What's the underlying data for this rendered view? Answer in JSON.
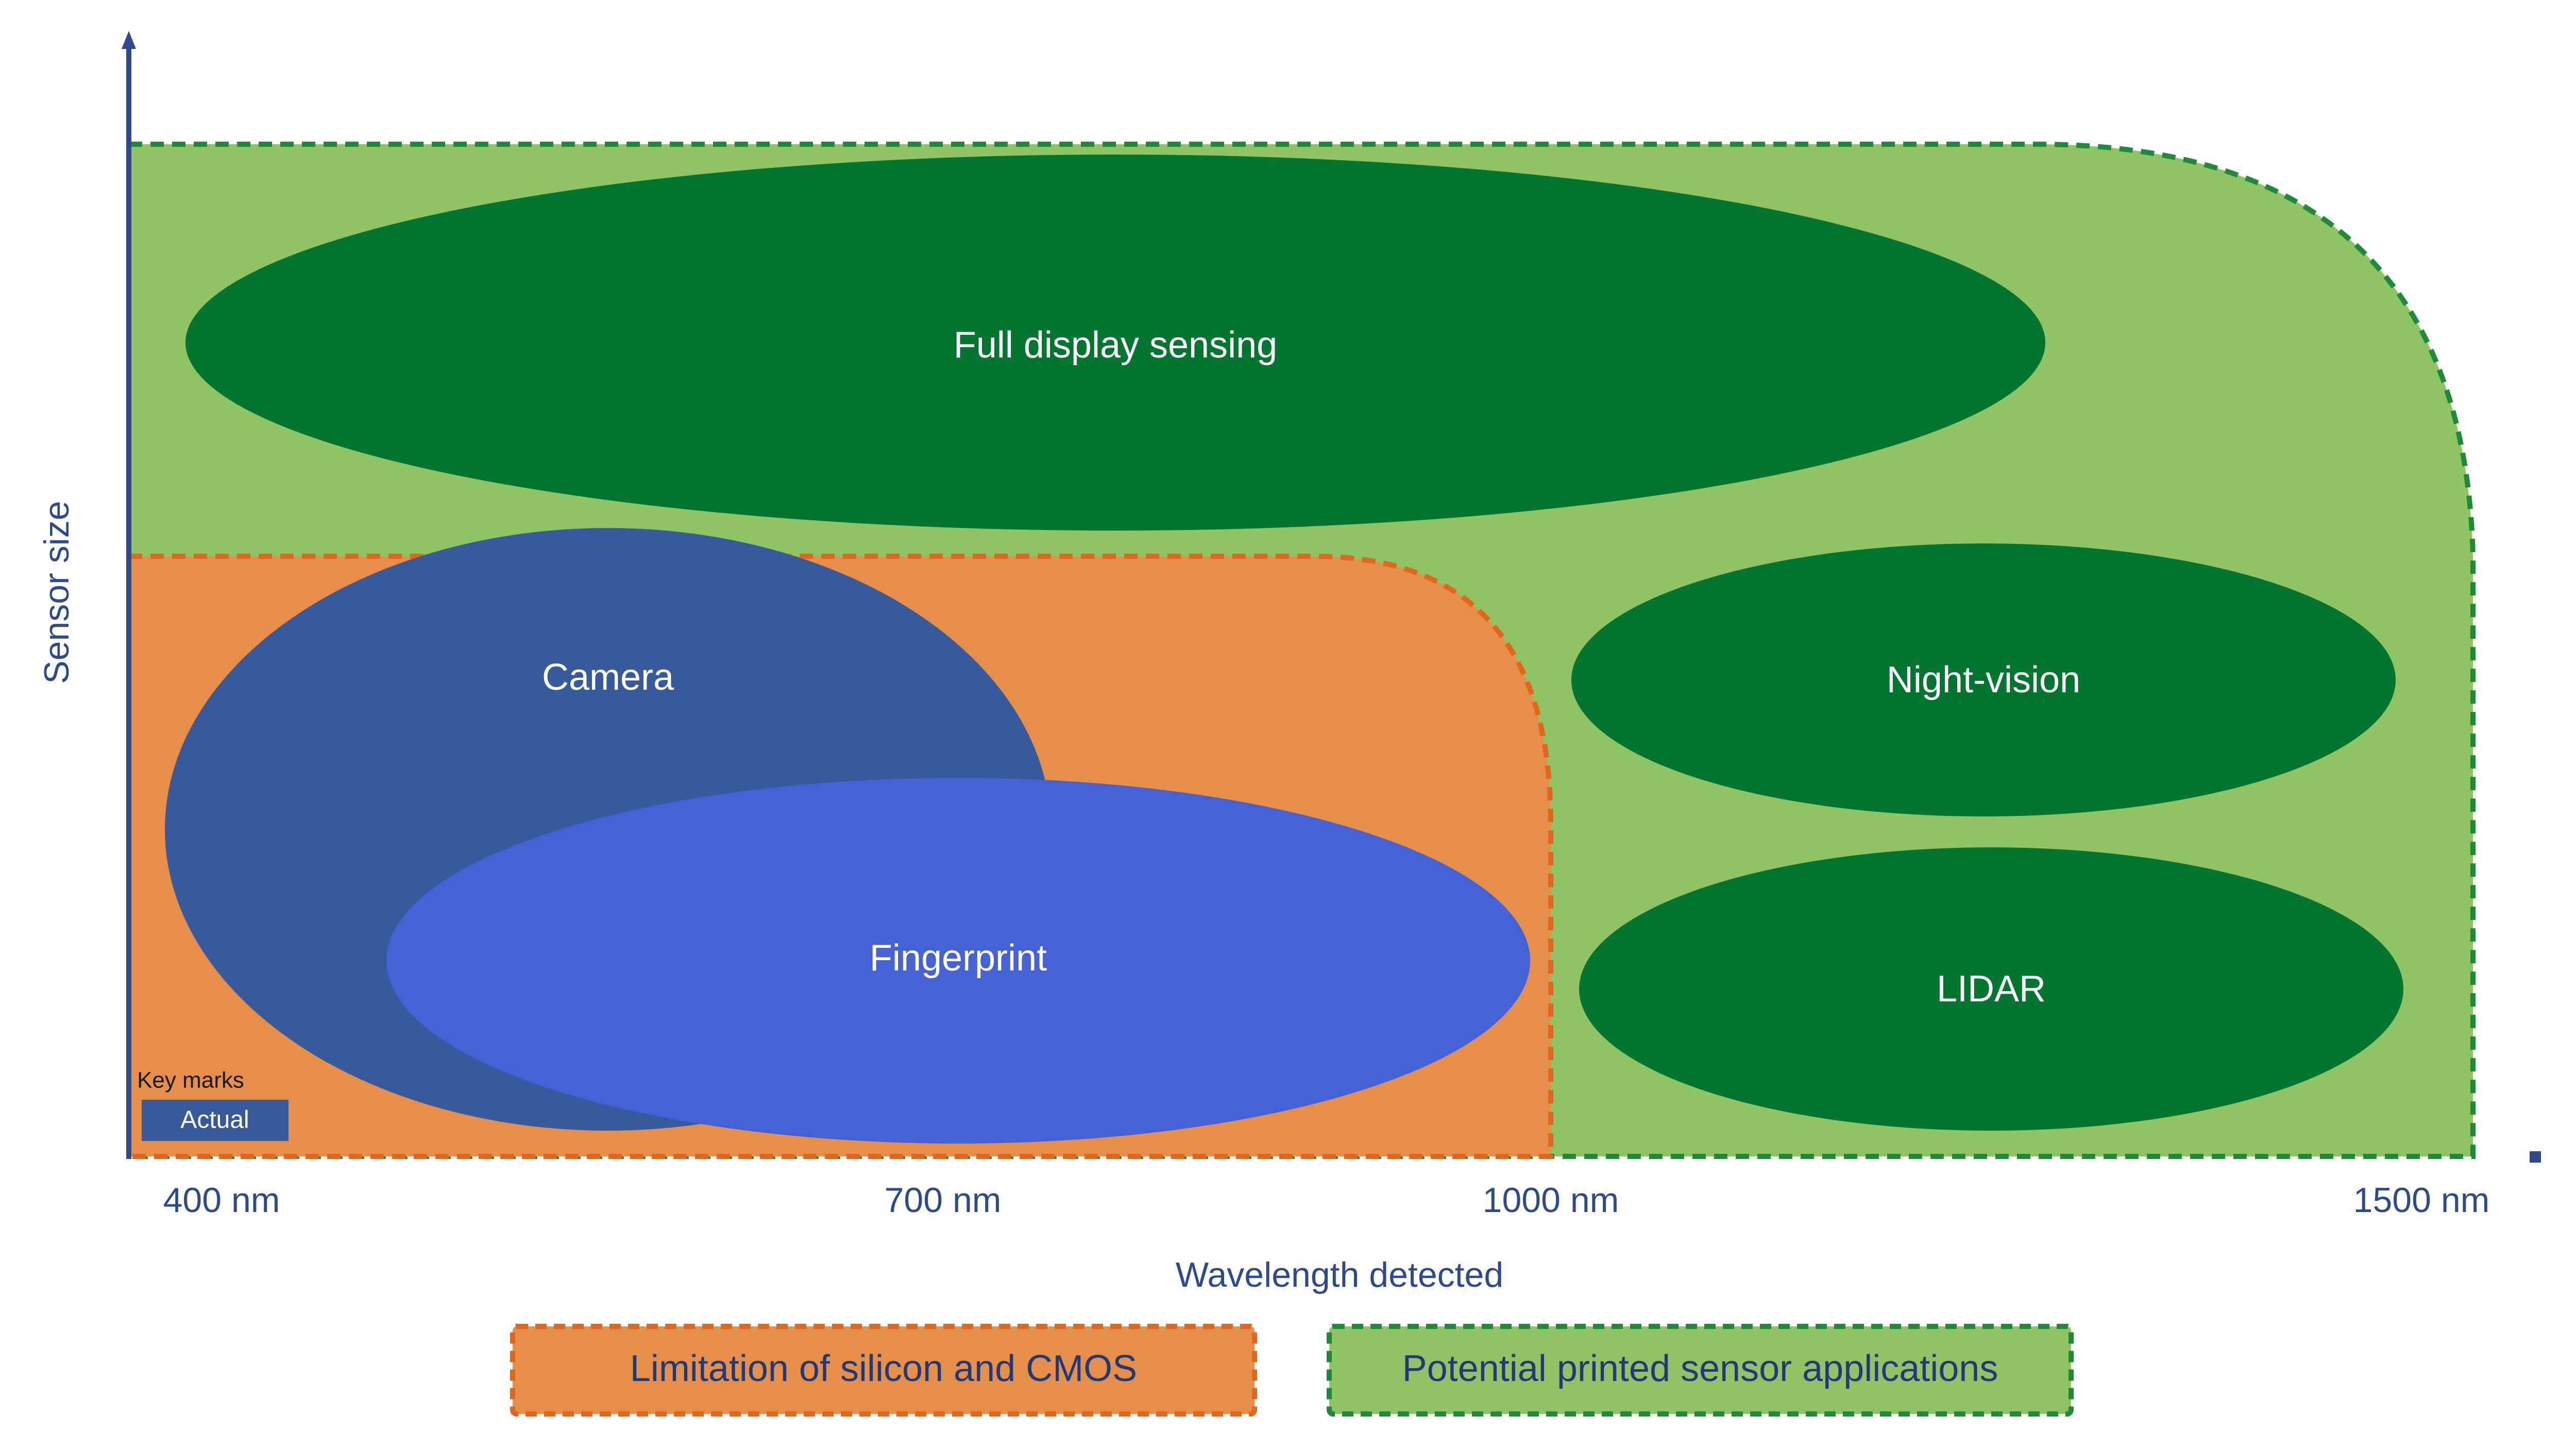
{
  "colors": {
    "axis": "#2e4a8f",
    "light_green": "#8fc465",
    "dark_green": "#037530",
    "orange": "#e58f4a",
    "orange_border": "#e0681c",
    "navy_blue": "#375a9c",
    "royal_blue": "#4462d6",
    "green_border": "#1f8a3a"
  },
  "regions": {
    "potential": "Potential printed sensor applications",
    "limitation": "Limitation of silicon and CMOS"
  },
  "bubbles": {
    "full_display": "Full display sensing",
    "camera": "Camera",
    "fingerprint": "Fingerprint",
    "night_vision": "Night-vision",
    "lidar": "LIDAR",
    "key_mark": "Key marks",
    "key_sub": "Actual"
  },
  "axes": {
    "y_label": "Sensor size",
    "x_label": "Wavelength detected",
    "ticks": [
      "400 nm",
      "700 nm",
      "1000 nm",
      "1500 nm"
    ]
  },
  "legend": {
    "limitation": "Limitation of silicon and CMOS",
    "potential": "Potential printed sensor applications"
  }
}
